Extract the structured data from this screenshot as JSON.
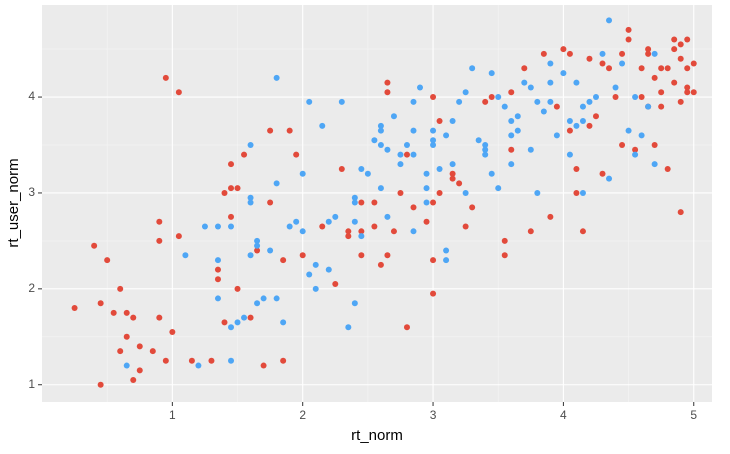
{
  "chart_data": {
    "type": "scatter",
    "x_label": "rt_norm",
    "y_label": "rt_user_norm",
    "xlim": [
      0,
      5.14
    ],
    "ylim": [
      0.82,
      4.96
    ],
    "xticks": [
      1,
      2,
      3,
      4,
      5
    ],
    "yticks": [
      1,
      2,
      3,
      4
    ],
    "x_minor_breaks": [
      0.5,
      1.5,
      2.5,
      3.5,
      4.5
    ],
    "y_minor_breaks": [
      1.5,
      2.5,
      3.5,
      4.5
    ],
    "grid": true,
    "series": [
      {
        "color": "#e24a3b",
        "x": [
          0.25,
          0.4,
          0.45,
          0.5,
          0.45,
          0.55,
          0.6,
          0.6,
          0.65,
          0.65,
          0.7,
          0.7,
          0.75,
          0.75,
          0.85,
          0.9,
          0.9,
          0.9,
          0.95,
          1.0,
          0.95,
          1.05,
          1.05,
          1.15,
          1.3,
          1.35,
          1.35,
          1.4,
          1.4,
          1.45,
          1.45,
          1.45,
          1.5,
          1.6,
          1.65,
          1.7,
          1.75,
          1.75,
          1.85,
          1.85,
          1.9,
          1.95,
          2.0,
          2.15,
          2.25,
          2.3,
          2.35,
          2.45,
          2.45,
          2.55,
          2.55,
          2.6,
          2.65,
          2.65,
          2.65,
          2.7,
          2.75,
          2.8,
          2.8,
          2.85,
          2.95,
          3.0,
          3.0,
          3.0,
          3.0,
          3.05,
          3.05,
          3.15,
          3.15,
          3.2,
          3.25,
          3.4,
          3.45,
          3.55,
          3.55,
          3.6,
          3.6,
          3.7,
          3.75,
          3.85,
          3.9,
          3.95,
          4.0,
          4.05,
          4.05,
          4.1,
          4.1,
          4.15,
          4.2,
          4.25,
          4.3,
          4.3,
          4.35,
          4.4,
          4.45,
          4.45,
          4.5,
          4.5,
          4.55,
          4.6,
          4.6,
          4.65,
          4.65,
          4.7,
          4.7,
          4.75,
          4.75,
          4.8,
          4.8,
          4.85,
          4.85,
          4.9,
          4.9,
          4.9,
          4.95,
          4.95,
          4.95,
          5.0,
          5.0,
          4.9,
          4.95,
          4.85,
          4.75,
          4.65,
          4.2,
          3.3,
          2.45,
          1.55,
          1.5,
          2.35
        ],
        "values": [
          1.8,
          2.45,
          1.85,
          2.3,
          1.0,
          1.75,
          2.0,
          1.35,
          1.5,
          1.75,
          1.7,
          1.05,
          1.4,
          1.15,
          1.35,
          1.7,
          2.7,
          2.5,
          1.25,
          1.55,
          4.2,
          4.05,
          2.55,
          1.25,
          1.25,
          2.1,
          2.2,
          1.65,
          3.0,
          3.05,
          3.3,
          2.75,
          2.0,
          1.7,
          2.4,
          1.2,
          3.65,
          2.9,
          1.25,
          2.3,
          3.65,
          3.4,
          2.35,
          2.65,
          2.05,
          3.25,
          2.6,
          2.35,
          2.9,
          2.9,
          2.65,
          2.25,
          2.35,
          4.05,
          4.15,
          2.6,
          3.0,
          1.6,
          3.4,
          2.85,
          2.7,
          4.0,
          2.3,
          1.95,
          2.9,
          3.0,
          3.75,
          3.15,
          3.2,
          3.1,
          2.65,
          3.95,
          4.0,
          2.35,
          2.5,
          3.45,
          4.05,
          4.3,
          2.6,
          4.45,
          2.75,
          3.9,
          4.5,
          4.45,
          3.65,
          3.0,
          3.25,
          2.6,
          3.7,
          3.8,
          3.2,
          4.35,
          4.3,
          4.0,
          4.45,
          3.5,
          4.7,
          4.6,
          3.45,
          4.3,
          4.0,
          4.5,
          4.45,
          4.2,
          3.5,
          4.05,
          4.3,
          3.25,
          4.3,
          4.6,
          4.5,
          4.55,
          4.4,
          3.95,
          4.6,
          4.3,
          4.1,
          4.05,
          4.35,
          2.8,
          4.05,
          4.15,
          3.9,
          3.9,
          4.4,
          2.85,
          2.6,
          3.4,
          3.05,
          2.55
        ]
      },
      {
        "color": "#4ea6f5",
        "x": [
          0.65,
          1.1,
          1.2,
          1.25,
          1.35,
          1.35,
          1.35,
          1.45,
          1.45,
          1.45,
          1.5,
          1.55,
          1.6,
          1.6,
          1.6,
          1.6,
          1.65,
          1.65,
          1.65,
          1.7,
          1.75,
          1.8,
          1.8,
          1.8,
          1.85,
          1.9,
          1.95,
          2.0,
          2.0,
          2.05,
          2.05,
          2.1,
          2.1,
          2.15,
          2.2,
          2.25,
          2.2,
          2.3,
          2.35,
          2.4,
          2.4,
          2.4,
          2.45,
          2.5,
          2.55,
          2.6,
          2.6,
          2.6,
          2.6,
          2.65,
          2.65,
          2.7,
          2.75,
          2.75,
          2.8,
          2.85,
          2.85,
          2.85,
          2.85,
          2.9,
          2.95,
          2.95,
          2.95,
          3.0,
          3.0,
          3.0,
          3.05,
          3.1,
          3.1,
          3.1,
          3.15,
          3.15,
          3.2,
          3.25,
          3.25,
          3.3,
          3.35,
          3.4,
          3.4,
          3.4,
          3.45,
          3.45,
          3.5,
          3.55,
          3.6,
          3.6,
          3.6,
          3.65,
          3.65,
          3.7,
          3.75,
          3.75,
          3.8,
          3.8,
          3.85,
          3.9,
          3.9,
          3.9,
          3.95,
          4.0,
          4.05,
          4.05,
          4.1,
          4.1,
          4.15,
          4.15,
          4.2,
          4.25,
          4.3,
          4.35,
          4.35,
          4.4,
          4.45,
          4.5,
          4.55,
          4.55,
          4.6,
          4.65,
          4.7,
          4.7,
          4.15,
          3.5,
          2.4,
          2.45
        ],
        "values": [
          1.2,
          2.35,
          1.2,
          2.65,
          2.3,
          1.9,
          2.65,
          1.6,
          1.25,
          2.65,
          1.65,
          1.7,
          2.35,
          2.9,
          3.5,
          2.95,
          2.45,
          2.5,
          1.85,
          1.9,
          2.4,
          1.9,
          3.1,
          4.2,
          1.65,
          2.65,
          2.7,
          3.2,
          2.6,
          2.15,
          3.95,
          2.0,
          2.25,
          3.7,
          2.7,
          2.75,
          2.2,
          3.95,
          1.6,
          1.85,
          2.7,
          2.95,
          3.25,
          3.2,
          3.55,
          3.5,
          3.65,
          3.7,
          3.05,
          3.45,
          2.75,
          3.8,
          3.3,
          3.4,
          3.5,
          3.65,
          3.4,
          3.95,
          2.6,
          4.1,
          3.2,
          2.9,
          3.05,
          3.55,
          3.65,
          3.5,
          3.25,
          2.3,
          3.6,
          2.4,
          3.75,
          3.3,
          3.95,
          3.0,
          4.05,
          4.3,
          3.55,
          3.45,
          3.5,
          3.4,
          3.2,
          4.25,
          3.05,
          3.9,
          3.3,
          3.6,
          3.75,
          3.8,
          3.65,
          4.15,
          4.1,
          3.45,
          3.95,
          3.0,
          3.85,
          4.35,
          4.15,
          3.95,
          3.6,
          4.25,
          3.75,
          3.4,
          3.7,
          4.15,
          3.9,
          3.75,
          3.95,
          4.0,
          4.45,
          4.8,
          3.15,
          4.1,
          4.35,
          3.65,
          3.4,
          4.0,
          3.6,
          3.9,
          3.3,
          4.45,
          3.0,
          4.0,
          2.9,
          2.55
        ]
      }
    ]
  }
}
